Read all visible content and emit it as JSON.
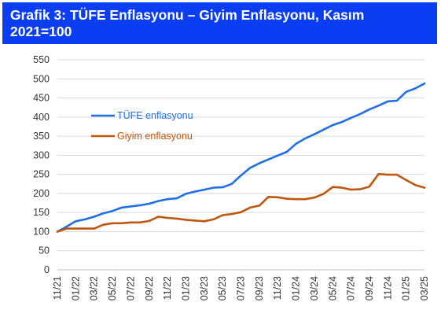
{
  "header": {
    "title": "Grafik 3: TÜFE Enflasyonu – Giyim Enflasyonu, Kasım 2021=100"
  },
  "colors": {
    "header_bg": "#0b3ef2",
    "tufe": "#1f6fe6",
    "giyim": "#c0570e",
    "grid": "#d9d9d9"
  },
  "chart_data": {
    "type": "line",
    "title": "Grafik 3: TÜFE Enflasyonu – Giyim Enflasyonu, Kasım 2021=100",
    "xlabel": "",
    "ylabel": "",
    "ylim": [
      0,
      550
    ],
    "yticks": [
      0,
      50,
      100,
      150,
      200,
      250,
      300,
      350,
      400,
      450,
      500,
      550
    ],
    "grid": "horizontal",
    "legend_position": "upper-left",
    "x": [
      "11/21",
      "12/21",
      "01/22",
      "02/22",
      "03/22",
      "04/22",
      "05/22",
      "06/22",
      "07/22",
      "08/22",
      "09/22",
      "10/22",
      "11/22",
      "12/22",
      "01/23",
      "02/23",
      "03/23",
      "04/23",
      "05/23",
      "06/23",
      "07/23",
      "08/23",
      "09/23",
      "10/23",
      "11/23",
      "12/23",
      "01/24",
      "02/24",
      "03/24",
      "04/24",
      "05/24",
      "06/24",
      "07/24",
      "08/24",
      "09/24",
      "10/24",
      "11/24",
      "12/24",
      "01/25",
      "02/25",
      "03/25"
    ],
    "xtick_labels": [
      "11/21",
      "01/22",
      "03/22",
      "05/22",
      "07/22",
      "09/22",
      "11/22",
      "01/23",
      "03/23",
      "05/23",
      "07/23",
      "09/23",
      "11/23",
      "01/24",
      "03/24",
      "05/24",
      "07/24",
      "09/24",
      "11/24",
      "01/25",
      "03/25"
    ],
    "series": [
      {
        "name": "TÜFE enflasyonu",
        "values": [
          100,
          113,
          127,
          132,
          139,
          148,
          154,
          163,
          166,
          169,
          173,
          180,
          185,
          187,
          199,
          205,
          210,
          215,
          216,
          225,
          247,
          267,
          279,
          289,
          299,
          309,
          330,
          344,
          355,
          367,
          379,
          387,
          398,
          408,
          420,
          430,
          441,
          443,
          466,
          475,
          488
        ]
      },
      {
        "name": "Giyim enflasyonu",
        "values": [
          100,
          108,
          108,
          108,
          108,
          118,
          122,
          122,
          124,
          124,
          128,
          139,
          136,
          134,
          131,
          129,
          127,
          132,
          143,
          146,
          151,
          163,
          168,
          191,
          190,
          186,
          185,
          185,
          189,
          199,
          217,
          215,
          210,
          211,
          218,
          251,
          249,
          249,
          235,
          222,
          215
        ]
      }
    ]
  }
}
